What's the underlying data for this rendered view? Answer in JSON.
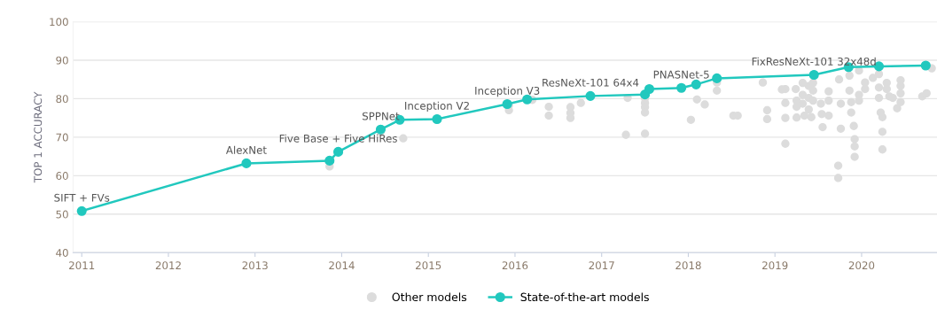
{
  "chart_data": {
    "type": "scatter",
    "ylabel": "TOP 1 ACCURACY",
    "xlim": [
      2010.9,
      2020.87
    ],
    "xticks": [
      2011,
      2012,
      2013,
      2014,
      2015,
      2016,
      2017,
      2018,
      2019,
      2020
    ],
    "ylim": [
      40,
      100
    ],
    "yticks": [
      40,
      50,
      60,
      70,
      80,
      90,
      100
    ],
    "grid": "y",
    "legend": "bottom",
    "marker": "circle",
    "series": [
      {
        "name": "Other models",
        "color": "#dcdcdc",
        "x": [
          2013.86,
          2014.45,
          2014.71,
          2015.93,
          2015.93,
          2016.2,
          2016.39,
          2016.39,
          2016.64,
          2016.64,
          2016.64,
          2016.76,
          2017.3,
          2017.28,
          2017.5,
          2017.5,
          2017.5,
          2017.5,
          2017.5,
          2018.1,
          2018.03,
          2018.19,
          2018.33,
          2018.33,
          2018.52,
          2018.57,
          2018.86,
          2018.91,
          2018.91,
          2019.12,
          2019.12,
          2019.12,
          2019.12,
          2019.08,
          2019.24,
          2019.25,
          2019.25,
          2019.32,
          2019.32,
          2019.32,
          2019.39,
          2019.39,
          2019.39,
          2019.44,
          2019.44,
          2019.44,
          2019.25,
          2019.34,
          2019.42,
          2019.53,
          2019.54,
          2019.62,
          2019.62,
          2019.62,
          2019.55,
          2019.74,
          2019.76,
          2019.76,
          2019.73,
          2019.73,
          2019.86,
          2019.86,
          2019.88,
          2019.88,
          2019.91,
          2019.92,
          2019.92,
          2019.92,
          2019.97,
          2019.97,
          2019.97,
          2020.04,
          2020.04,
          2020.13,
          2020.2,
          2020.2,
          2020.2,
          2020.22,
          2020.24,
          2020.24,
          2020.24,
          2020.29,
          2020.29,
          2020.32,
          2020.36,
          2020.45,
          2020.45,
          2020.45,
          2020.45,
          2020.41,
          2020.7,
          2020.75,
          2020.81
        ],
        "values": [
          62.4,
          71.4,
          69.7,
          78.2,
          77.0,
          79.7,
          77.9,
          75.6,
          77.8,
          76.3,
          75.0,
          78.9,
          80.2,
          70.6,
          80.1,
          78.9,
          77.8,
          76.4,
          70.9,
          79.8,
          74.5,
          78.5,
          84.2,
          82.1,
          75.6,
          75.6,
          84.2,
          77.0,
          74.7,
          82.5,
          78.9,
          75.0,
          68.3,
          82.4,
          82.5,
          79.5,
          77.9,
          84.1,
          81.0,
          78.7,
          83.3,
          80.2,
          77.2,
          84.1,
          82.1,
          79.5,
          75.1,
          75.6,
          75.2,
          78.7,
          76.0,
          81.9,
          79.5,
          75.6,
          72.6,
          85.0,
          78.7,
          72.2,
          62.6,
          59.4,
          86.0,
          82.1,
          79.1,
          76.4,
          72.9,
          69.5,
          67.6,
          64.9,
          87.3,
          81.0,
          79.5,
          84.2,
          82.5,
          85.4,
          86.4,
          82.9,
          80.2,
          76.4,
          75.2,
          71.4,
          66.8,
          84.1,
          82.5,
          80.6,
          80.2,
          84.8,
          83.3,
          81.4,
          79.1,
          77.5,
          80.6,
          81.4,
          87.9
        ]
      },
      {
        "name": "State-of-the-art models",
        "type": "line",
        "color": "#21c8be",
        "x": [
          2011.0,
          2012.9,
          2013.86,
          2013.96,
          2014.45,
          2014.67,
          2015.1,
          2015.91,
          2016.14,
          2016.87,
          2017.5,
          2017.55,
          2017.92,
          2018.09,
          2018.33,
          2019.45,
          2019.85,
          2020.2,
          2020.74
        ],
        "values": [
          50.8,
          63.2,
          63.9,
          66.2,
          72.0,
          74.5,
          74.7,
          78.6,
          79.8,
          80.7,
          81.1,
          82.5,
          82.8,
          83.7,
          85.3,
          86.2,
          88.2,
          88.4,
          88.6
        ]
      }
    ],
    "annotations": [
      {
        "text": "SIFT + FVs",
        "x": 2011.0,
        "y": 50.8
      },
      {
        "text": "AlexNet",
        "x": 2012.9,
        "y": 63.2
      },
      {
        "text": "Five Base + Five HiRes",
        "x": 2013.96,
        "y": 66.2
      },
      {
        "text": "SPPNet",
        "x": 2014.45,
        "y": 72.0
      },
      {
        "text": "Inception V2",
        "x": 2015.1,
        "y": 74.7
      },
      {
        "text": "Inception V3",
        "x": 2015.91,
        "y": 78.6
      },
      {
        "text": "ResNeXt-101 64x4",
        "x": 2016.87,
        "y": 80.7
      },
      {
        "text": "PNASNet-5",
        "x": 2017.92,
        "y": 82.8
      },
      {
        "text": "FixResNeXt-101 32x48d",
        "x": 2019.45,
        "y": 86.2
      }
    ]
  }
}
